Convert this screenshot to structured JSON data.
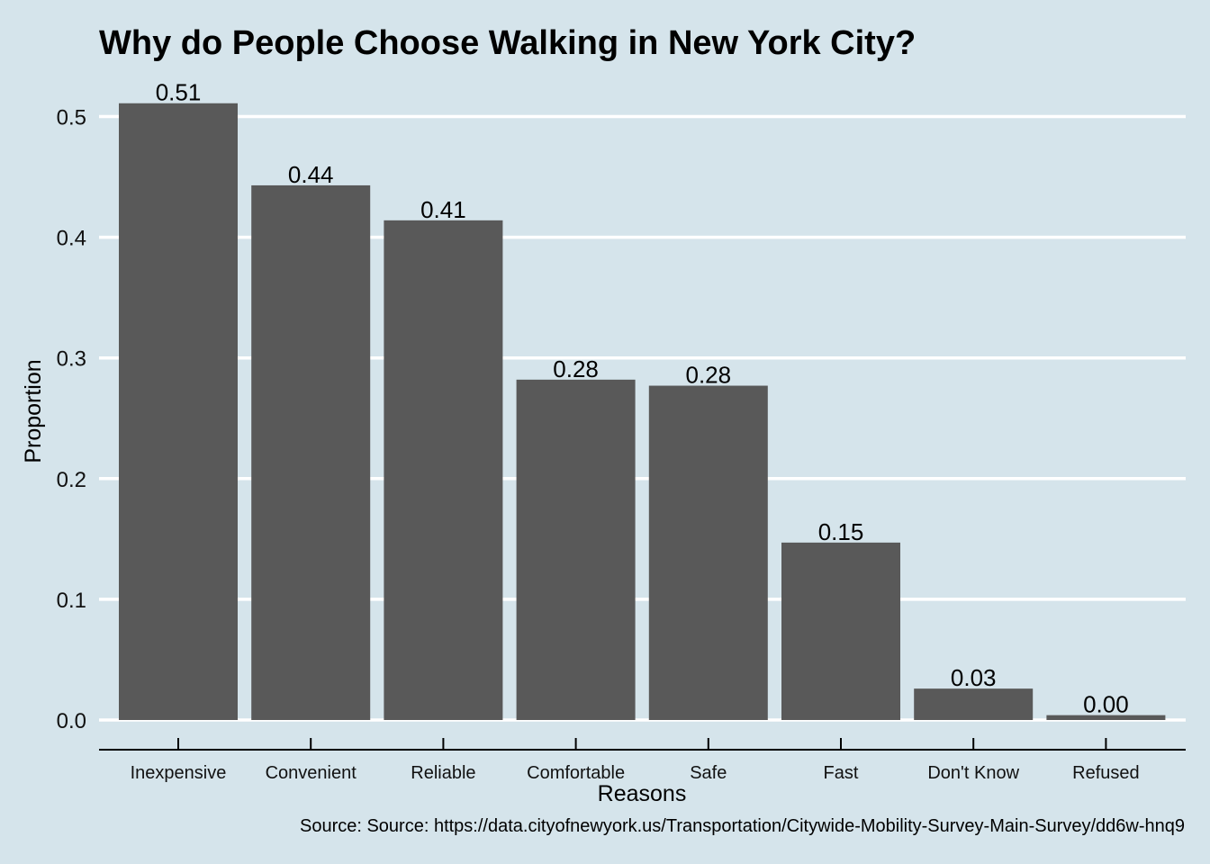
{
  "chart_data": {
    "type": "bar",
    "title": "Why do People Choose Walking in New York City?",
    "xlabel": "Reasons",
    "ylabel": "Proportion",
    "caption": "Source: Source: https://data.cityofnewyork.us/Transportation/Citywide-Mobility-Survey-Main-Survey/dd6w-hnq9",
    "categories": [
      "Inexpensive",
      "Convenient",
      "Reliable",
      "Comfortable",
      "Safe",
      "Fast",
      "Don't Know",
      "Refused"
    ],
    "values": [
      0.511,
      0.443,
      0.414,
      0.282,
      0.277,
      0.147,
      0.026,
      0.004
    ],
    "value_labels": [
      "0.51",
      "0.44",
      "0.41",
      "0.28",
      "0.28",
      "0.15",
      "0.03",
      "0.00"
    ],
    "yticks": [
      0.0,
      0.1,
      0.2,
      0.3,
      0.4,
      0.5
    ],
    "ytick_labels": [
      "0.0",
      "0.1",
      "0.2",
      "0.3",
      "0.4",
      "0.5"
    ],
    "ylim": [
      0,
      0.5
    ],
    "grid": "horizontal",
    "colors": {
      "background": "#d5e4eb",
      "bar": "#595959",
      "grid": "#ffffff",
      "axis": "#000000"
    }
  }
}
